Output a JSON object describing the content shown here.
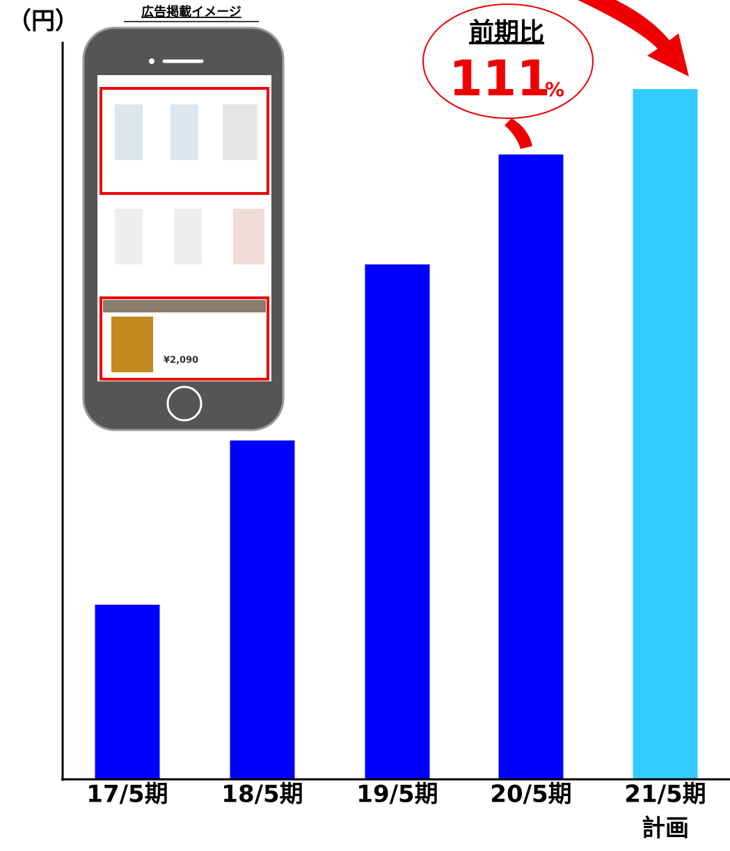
{
  "chart_data": {
    "type": "bar",
    "y_axis_label": "（円）",
    "inset_title": "広告掲載イメージ",
    "inset_price": "¥2,090",
    "categories": [
      "17/5期",
      "18/5期",
      "19/5期",
      "20/5期",
      "21/5期"
    ],
    "plan_label": "計画",
    "values": [
      251,
      487,
      740,
      898,
      992
    ],
    "colors": [
      "#0000ff",
      "#0000ff",
      "#0000ff",
      "#0000ff",
      "#33ccff"
    ],
    "ylim": [
      0,
      1055
    ],
    "annotation": {
      "text": "前期比",
      "value": "111",
      "unit": "%"
    }
  }
}
